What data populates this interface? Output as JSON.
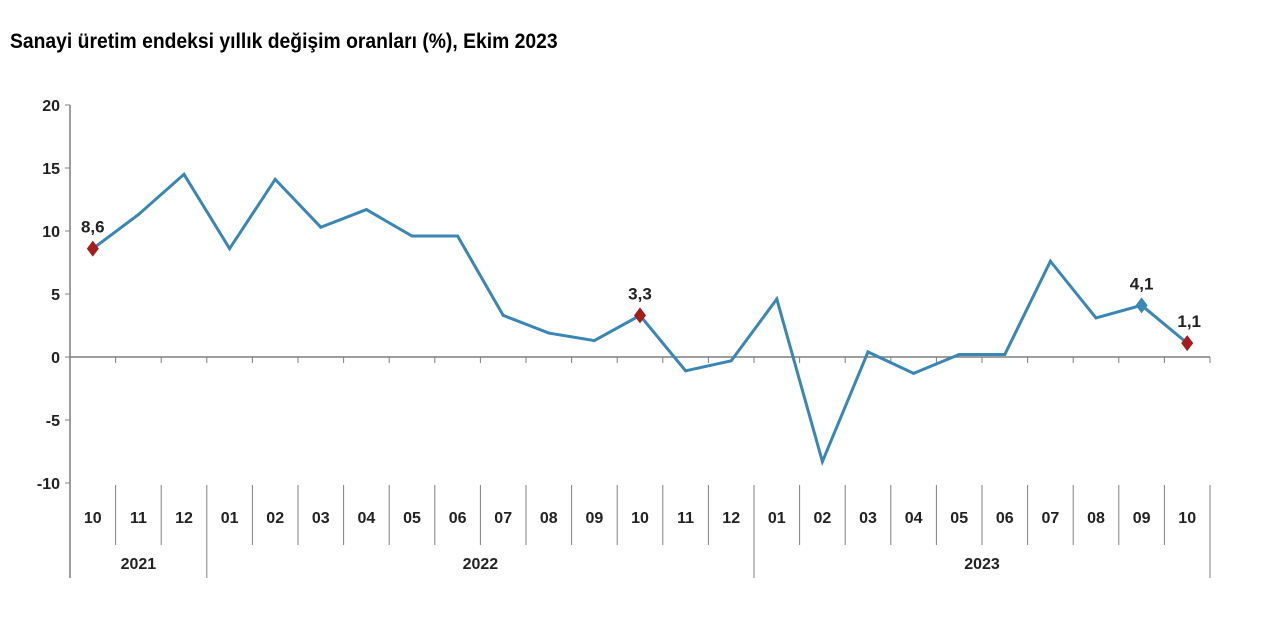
{
  "chart_data": {
    "type": "line",
    "title": "Sanayi üretim endeksi yıllık değişim oranları (%), Ekim 2023",
    "xlabel": "",
    "ylabel": "",
    "ylim": [
      -10,
      20
    ],
    "yticks": [
      "20",
      "15",
      "10",
      "5",
      "0",
      "-5",
      "-10"
    ],
    "ytick_values": [
      20,
      15,
      10,
      5,
      0,
      -5,
      -10
    ],
    "grid": false,
    "categories": [
      "10",
      "11",
      "12",
      "01",
      "02",
      "03",
      "04",
      "05",
      "06",
      "07",
      "08",
      "09",
      "10",
      "11",
      "12",
      "01",
      "02",
      "03",
      "04",
      "05",
      "06",
      "07",
      "08",
      "09",
      "10"
    ],
    "years": [
      {
        "label": "2021",
        "count": 3
      },
      {
        "label": "2022",
        "count": 12
      },
      {
        "label": "2023",
        "count": 10
      }
    ],
    "series": [
      {
        "color": "#3a86b4",
        "values": [
          8.6,
          11.3,
          14.5,
          8.6,
          14.1,
          10.3,
          11.7,
          9.6,
          9.6,
          3.3,
          1.9,
          1.3,
          3.3,
          -1.1,
          -0.3,
          4.6,
          -8.3,
          0.4,
          -1.3,
          0.2,
          0.2,
          7.6,
          3.1,
          4.1,
          1.1
        ]
      }
    ],
    "annotations": [
      {
        "index": 0,
        "label": "8,6",
        "marker_color": "#a51c1c"
      },
      {
        "index": 12,
        "label": "3,3",
        "marker_color": "#a51c1c"
      },
      {
        "index": 23,
        "label": "4,1",
        "marker_color": "#3a86b4"
      },
      {
        "index": 24,
        "label": "1,1",
        "marker_color": "#a51c1c"
      }
    ]
  }
}
